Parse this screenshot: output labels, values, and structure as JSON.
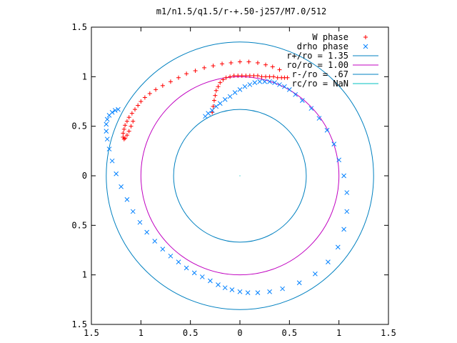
{
  "chart_data": {
    "type": "scatter",
    "title": "m1/n1.5/q1.5/r-+.50-j257/M7.0/512",
    "xlim": [
      -1.5,
      1.5
    ],
    "ylim": [
      -1.5,
      1.5
    ],
    "x_tick_labels": [
      "1.5",
      "1",
      "0.5",
      "0",
      "0.5",
      "1",
      "1.5"
    ],
    "x_tick_values": [
      -1.5,
      -1,
      -0.5,
      0,
      0.5,
      1,
      1.5
    ],
    "y_tick_labels": [
      "1.5",
      "1",
      "0.5",
      "0",
      "0.5",
      "1",
      "1.5"
    ],
    "y_tick_values": [
      1.5,
      1,
      0.5,
      0,
      -0.5,
      -1,
      -1.5
    ],
    "grid": false,
    "legend_position": "top-right",
    "colors": {
      "w_phase": "#ff0000",
      "drho_phase": "#0080ff",
      "r_plus": "#0080c0",
      "ro": "#c000c0",
      "r_minus": "#0080c0",
      "rc": "#00c0c0"
    },
    "legend": [
      {
        "label": "W phase",
        "kind": "plus",
        "color": "#ff0000"
      },
      {
        "label": "drho phase",
        "kind": "cross",
        "color": "#0080ff"
      },
      {
        "label": "r+/ro = 1.35",
        "kind": "line",
        "color": "#0080c0"
      },
      {
        "label": "ro/ro = 1.00",
        "kind": "line",
        "color": "#c000c0"
      },
      {
        "label": "r-/ro = .67",
        "kind": "line",
        "color": "#0080c0"
      },
      {
        "label": "rc/ro = NaN",
        "kind": "line",
        "color": "#00c0c0"
      }
    ],
    "circles": [
      {
        "name": "r+/ro",
        "radius": 1.35
      },
      {
        "name": "ro/ro",
        "radius": 1.0
      },
      {
        "name": "r-/ro",
        "radius": 0.67
      }
    ],
    "series": [
      {
        "name": "W phase",
        "marker": "plus",
        "x": [
          -0.28,
          -0.27,
          -0.26,
          -0.25,
          -0.24,
          -0.22,
          -0.2,
          -0.17,
          -0.14,
          -0.1,
          -0.06,
          -0.02,
          0.02,
          0.06,
          0.1,
          0.14,
          0.18,
          0.22,
          0.26,
          0.3,
          0.34,
          0.38,
          0.42,
          0.45,
          0.48,
          0.4,
          0.33,
          0.26,
          0.18,
          0.09,
          0.0,
          -0.09,
          -0.18,
          -0.27,
          -0.36,
          -0.45,
          -0.54,
          -0.62,
          -0.7,
          -0.78,
          -0.85,
          -0.91,
          -0.96,
          -1.0,
          -1.03,
          -1.06,
          -1.09,
          -1.12,
          -1.14,
          -1.16,
          -1.17,
          -1.18,
          -1.18,
          -1.17,
          -1.16,
          -1.14,
          -1.12,
          -1.1,
          -1.08
        ],
        "y": [
          0.64,
          0.7,
          0.76,
          0.81,
          0.86,
          0.9,
          0.94,
          0.97,
          0.99,
          1.0,
          1.01,
          1.01,
          1.01,
          1.01,
          1.01,
          1.01,
          1.01,
          1.0,
          1.0,
          1.0,
          1.0,
          0.99,
          0.99,
          0.99,
          0.99,
          1.07,
          1.1,
          1.12,
          1.14,
          1.15,
          1.15,
          1.14,
          1.13,
          1.11,
          1.09,
          1.06,
          1.03,
          0.99,
          0.95,
          0.91,
          0.87,
          0.83,
          0.79,
          0.75,
          0.71,
          0.67,
          0.63,
          0.59,
          0.55,
          0.51,
          0.47,
          0.43,
          0.39,
          0.37,
          0.38,
          0.41,
          0.45,
          0.5,
          0.55
        ]
      },
      {
        "name": "drho phase",
        "marker": "cross",
        "x": [
          -0.35,
          -0.32,
          -0.28,
          -0.24,
          -0.2,
          -0.15,
          -0.1,
          -0.05,
          0.0,
          0.05,
          0.1,
          0.15,
          0.2,
          0.25,
          0.3,
          0.35,
          0.4,
          0.45,
          0.5,
          0.56,
          0.63,
          0.72,
          0.8,
          0.88,
          0.95,
          1.0,
          1.05,
          1.08,
          1.08,
          1.05,
          0.99,
          0.89,
          0.76,
          0.6,
          0.43,
          0.3,
          0.18,
          0.08,
          0.0,
          -0.08,
          -0.15,
          -0.22,
          -0.3,
          -0.38,
          -0.46,
          -0.54,
          -0.62,
          -0.7,
          -0.78,
          -0.86,
          -0.94,
          -1.01,
          -1.08,
          -1.14,
          -1.2,
          -1.25,
          -1.29,
          -1.32,
          -1.34,
          -1.35,
          -1.35,
          -1.34,
          -1.32,
          -1.29,
          -1.26,
          -1.23
        ],
        "y": [
          0.6,
          0.63,
          0.66,
          0.7,
          0.73,
          0.77,
          0.8,
          0.84,
          0.87,
          0.9,
          0.92,
          0.94,
          0.95,
          0.95,
          0.95,
          0.94,
          0.92,
          0.9,
          0.87,
          0.82,
          0.76,
          0.68,
          0.58,
          0.46,
          0.32,
          0.16,
          0.0,
          -0.17,
          -0.36,
          -0.54,
          -0.72,
          -0.87,
          -0.99,
          -1.08,
          -1.14,
          -1.17,
          -1.18,
          -1.18,
          -1.17,
          -1.15,
          -1.13,
          -1.1,
          -1.06,
          -1.02,
          -0.98,
          -0.93,
          -0.87,
          -0.81,
          -0.74,
          -0.66,
          -0.57,
          -0.47,
          -0.36,
          -0.24,
          -0.11,
          0.02,
          0.15,
          0.27,
          0.37,
          0.45,
          0.52,
          0.57,
          0.61,
          0.64,
          0.66,
          0.67
        ]
      }
    ]
  }
}
